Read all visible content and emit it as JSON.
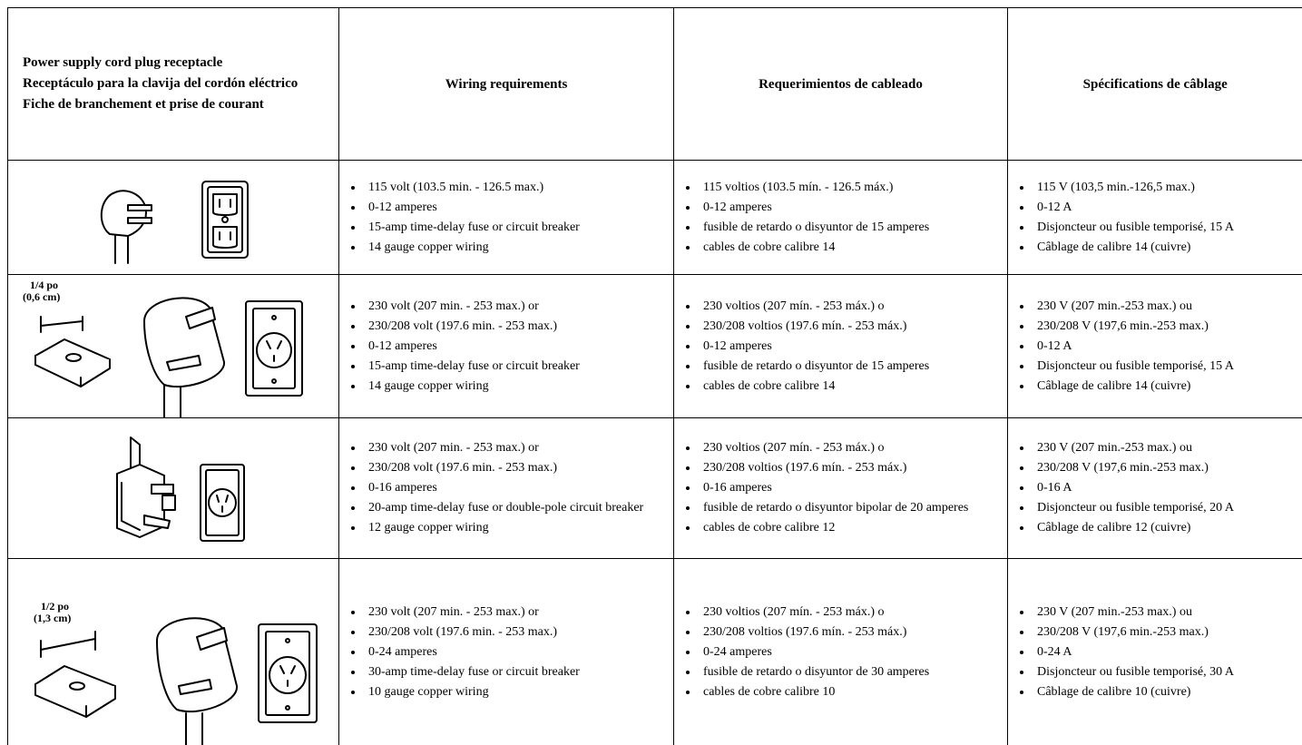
{
  "table": {
    "header": {
      "receptacle": [
        "Power supply cord plug receptacle",
        "Receptáculo para la clavija del cordón eléctrico",
        "Fiche de branchement et prise de courant"
      ],
      "columns": [
        "Wiring requirements",
        "Requerimientos de cableado",
        "Spécifications de câblage"
      ]
    },
    "rows": [
      {
        "requirements": [
          [
            "115 volt (103.5 min. - 126.5 max.)",
            "0-12 amperes",
            "15-amp time-delay fuse or circuit breaker",
            "14 gauge copper wiring"
          ],
          [
            "115 voltios (103.5 mín. - 126.5 máx.)",
            "0-12 amperes",
            "fusible de retardo o disyuntor de 15 amperes",
            "cables de cobre calibre 14"
          ],
          [
            "115 V (103,5 min.-126,5 max.)",
            "0-12 A",
            "Disjoncteur ou fusible temporisé, 15 A",
            "Câblage de calibre 14 (cuivre)"
          ]
        ]
      },
      {
        "dimension": [
          "1/4 po",
          "(0,6 cm)"
        ],
        "requirements": [
          [
            "230 volt (207 min. - 253 max.) or",
            "230/208 volt (197.6 min. - 253 max.)",
            "0-12 amperes",
            "15-amp time-delay fuse or circuit breaker",
            "14 gauge copper wiring"
          ],
          [
            "230 voltios (207 mín. - 253 máx.) o",
            "230/208 voltios (197.6 mín. - 253 máx.)",
            "0-12 amperes",
            "fusible de retardo o disyuntor de 15 amperes",
            "cables de cobre calibre 14"
          ],
          [
            "230 V (207 min.-253 max.) ou",
            "230/208 V (197,6 min.-253 max.)",
            "0-12 A",
            "Disjoncteur ou fusible temporisé, 15 A",
            "Câblage de calibre 14 (cuivre)"
          ]
        ]
      },
      {
        "requirements": [
          [
            "230 volt (207 min. - 253 max.) or",
            "230/208 volt (197.6 min. - 253 max.)",
            "0-16 amperes",
            "20-amp time-delay fuse or double-pole circuit breaker",
            "12 gauge copper wiring"
          ],
          [
            "230 voltios (207 mín. - 253 máx.) o",
            "230/208 voltios (197.6 mín. - 253 máx.)",
            "0-16 amperes",
            "fusible de retardo o disyuntor bipolar de 20 amperes",
            "cables de cobre calibre 12"
          ],
          [
            "230 V (207 min.-253 max.) ou",
            "230/208 V (197,6 min.-253 max.)",
            "0-16 A",
            "Disjoncteur ou fusible temporisé, 20 A",
            "Câblage de calibre 12 (cuivre)"
          ]
        ]
      },
      {
        "dimension": [
          "1/2 po",
          "(1,3 cm)"
        ],
        "requirements": [
          [
            "230 volt (207 min. - 253 max.) or",
            "230/208 volt (197.6 min. - 253 max.)",
            "0-24 amperes",
            "30-amp time-delay fuse or circuit breaker",
            "10 gauge copper wiring"
          ],
          [
            "230 voltios (207 mín. - 253 máx.) o",
            "230/208 voltios (197.6 mín. - 253 máx.)",
            "0-24 amperes",
            "fusible de retardo o disyuntor de 30 amperes",
            "cables de cobre calibre 10"
          ],
          [
            "230 V (207 min.-253 max.) ou",
            "230/208 V (197,6 min.-253 max.)",
            "0-24 A",
            "Disjoncteur ou fusible temporisé, 30 A",
            "Câblage de calibre 10 (cuivre)"
          ]
        ]
      }
    ]
  }
}
